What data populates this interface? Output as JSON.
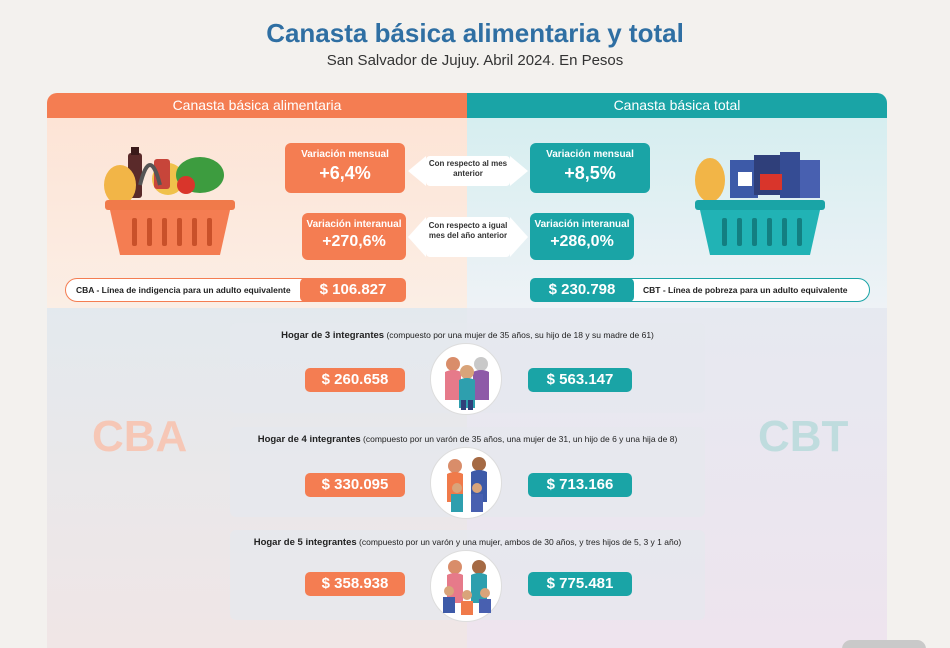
{
  "header": {
    "title": "Canasta básica alimentaria y total",
    "subtitle": "San Salvador de Jujuy. Abril 2024. En Pesos"
  },
  "colors": {
    "orange": "#f47d52",
    "teal": "#1aa4a6",
    "title_blue": "#2f6fa3"
  },
  "cba": {
    "header": "Canasta básica alimentaria",
    "monthly_label": "Variación mensual",
    "monthly_value": "+6,4%",
    "yearly_label": "Variación interanual",
    "yearly_value": "+270,6%",
    "line_label": "CBA - Línea de indigencia para un adulto equivalente",
    "line_value": "$ 106.827",
    "watermark": "CBA",
    "basket_icon": "food-basket-icon"
  },
  "cbt": {
    "header": "Canasta básica total",
    "monthly_label": "Variación mensual",
    "monthly_value": "+8,5%",
    "yearly_label": "Variación interanual",
    "yearly_value": "+286,0%",
    "line_label": "CBT - Línea de pobreza para un adulto equivalente",
    "line_value": "$ 230.798",
    "watermark": "CBT",
    "basket_icon": "goods-basket-icon"
  },
  "notes": {
    "monthly": "Con respecto al mes anterior",
    "yearly": "Con respecto a igual mes del año anterior"
  },
  "households": [
    {
      "title": "Hogar de 3 integrantes",
      "detail": "(compuesto por una mujer de 35 años, su hijo de 18 y su madre de 61)",
      "cba": "$ 260.658",
      "cbt": "$ 563.147",
      "icon": "family-of-3-icon"
    },
    {
      "title": "Hogar de 4 integrantes",
      "detail": "(compuesto por un varón de 35 años, una mujer de 31, un hijo de 6 y una hija de 8)",
      "cba": "$ 330.095",
      "cbt": "$ 713.166",
      "icon": "family-of-4-icon"
    },
    {
      "title": "Hogar de 5 integrantes",
      "detail": "(compuesto por un varón y una mujer, ambos de 30 años, y tres hijos de 5, 3 y 1 año)",
      "cba": "$ 358.938",
      "cbt": "$ 775.481",
      "icon": "family-of-5-icon"
    }
  ]
}
